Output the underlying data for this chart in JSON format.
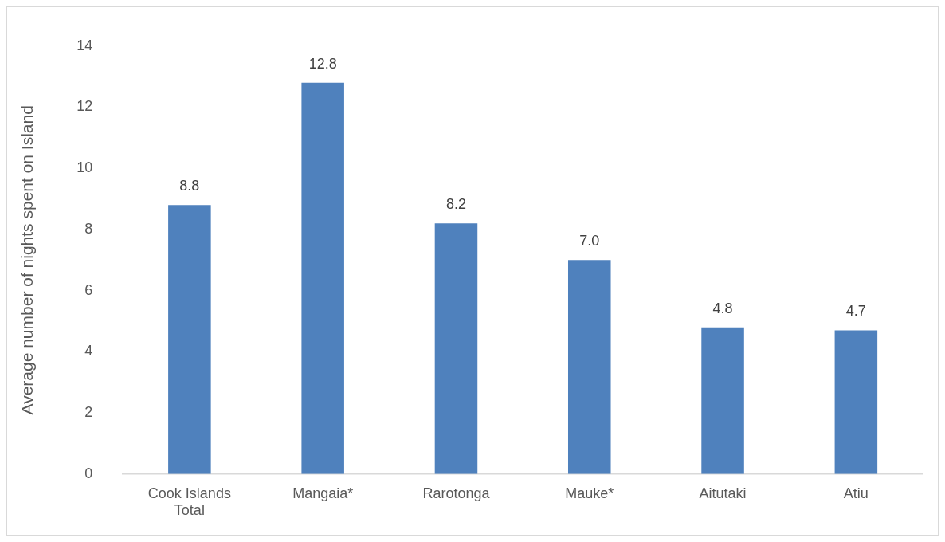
{
  "chart_data": {
    "type": "bar",
    "ylabel": "Average number of nights spent on Island",
    "categories": [
      "Cook Islands Total",
      "Mangaia*",
      "Rarotonga",
      "Mauke*",
      "Aitutaki",
      "Atiu"
    ],
    "values": [
      8.8,
      12.8,
      8.2,
      7.0,
      4.8,
      4.7
    ],
    "value_labels": [
      "8.8",
      "12.8",
      "8.2",
      "7.0",
      "4.8",
      "4.7"
    ],
    "color": "#4f81bd",
    "ylim": [
      0,
      14
    ],
    "yticks": [
      0,
      2,
      4,
      6,
      8,
      10,
      12,
      14
    ],
    "grid": false
  }
}
